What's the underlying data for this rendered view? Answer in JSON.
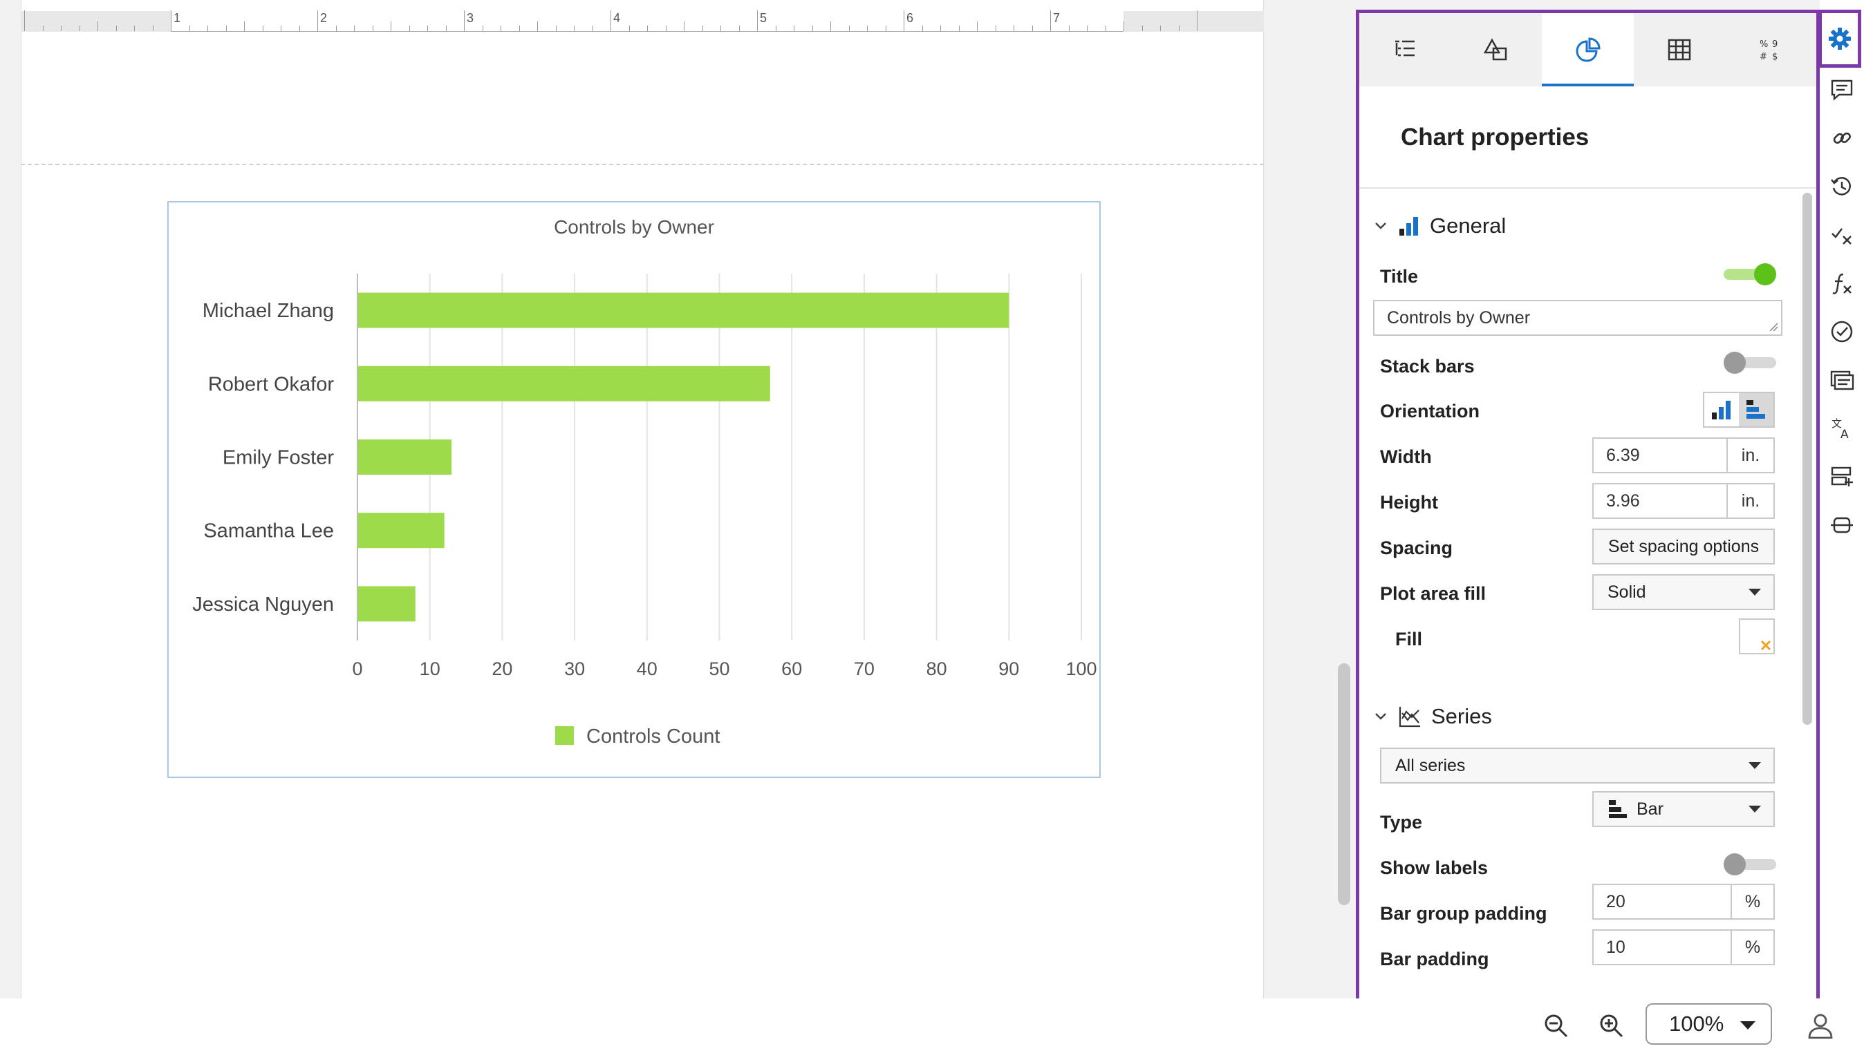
{
  "chart_data": {
    "type": "bar",
    "orientation": "horizontal",
    "title": "Controls by Owner",
    "categories": [
      "Michael Zhang",
      "Robert Okafor",
      "Emily Foster",
      "Samantha Lee",
      "Jessica Nguyen"
    ],
    "series": [
      {
        "name": "Controls Count",
        "values": [
          90,
          57,
          13,
          12,
          8
        ],
        "color": "#9ddb4a"
      }
    ],
    "xlim": [
      0,
      100
    ],
    "xticks": [
      0,
      10,
      20,
      30,
      40,
      50,
      60,
      70,
      80,
      90,
      100
    ],
    "grid": true,
    "legend": "bottom"
  },
  "ruler": {
    "numbers": [
      "1",
      "2",
      "3",
      "4",
      "5",
      "6",
      "7"
    ]
  },
  "panel": {
    "tabs": [
      "list-icon",
      "shapes-icon",
      "pie-chart-icon",
      "table-icon",
      "number-format-icon"
    ],
    "title": "Chart properties",
    "general": {
      "heading": "General",
      "title_label": "Title",
      "title_value": "Controls by Owner",
      "stack_bars_label": "Stack bars",
      "orientation_label": "Orientation",
      "width_label": "Width",
      "width_value": "6.39",
      "width_unit": "in.",
      "height_label": "Height",
      "height_value": "3.96",
      "height_unit": "in.",
      "spacing_label": "Spacing",
      "spacing_button": "Set spacing options",
      "plot_fill_label": "Plot area fill",
      "plot_fill_value": "Solid",
      "fill_label": "Fill"
    },
    "series": {
      "heading": "Series",
      "series_select": "All series",
      "type_label": "Type",
      "type_value": "Bar",
      "show_labels_label": "Show labels",
      "group_padding_label": "Bar group padding",
      "group_padding_value": "20",
      "group_padding_unit": "%",
      "bar_padding_label": "Bar padding",
      "bar_padding_value": "10",
      "bar_padding_unit": "%"
    }
  },
  "rail": [
    "gear-icon",
    "comment-icon",
    "link-icon",
    "history-icon",
    "check-x-icon",
    "function-icon",
    "approve-icon",
    "captions-icon",
    "translate-icon",
    "form-icon",
    "strikethrough-icon"
  ],
  "bottom": {
    "zoom": "100%"
  },
  "colors": {
    "accent": "#1a73c8",
    "highlight": "#7b3aa8",
    "bar": "#9ddb4a",
    "toggle_on": "#5cc21a"
  }
}
